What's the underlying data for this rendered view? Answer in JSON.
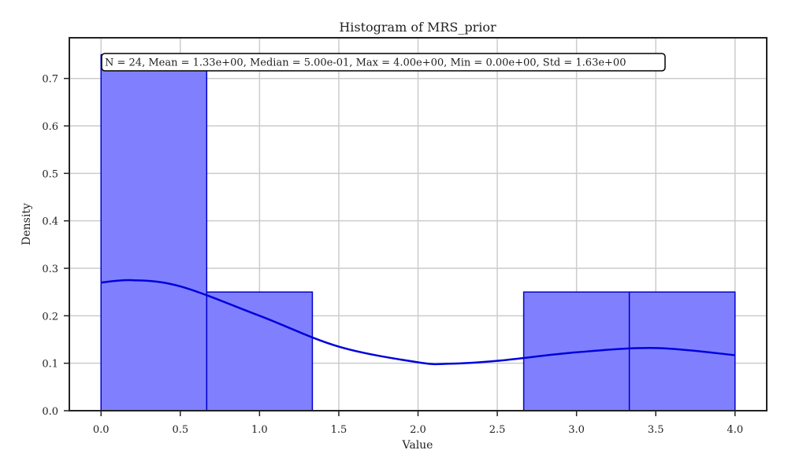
{
  "chart_data": {
    "type": "bar",
    "title": "Histogram of MRS_prior",
    "xlabel": "Value",
    "ylabel": "Density",
    "xlim": [
      -0.2,
      4.2
    ],
    "ylim": [
      0,
      0.7857
    ],
    "xticks": [
      "0.0",
      "0.5",
      "1.0",
      "1.5",
      "2.0",
      "2.5",
      "3.0",
      "3.5",
      "4.0"
    ],
    "yticks": [
      "0.0",
      "0.1",
      "0.2",
      "0.3",
      "0.4",
      "0.5",
      "0.6",
      "0.7"
    ],
    "grid": true,
    "bins": [
      {
        "x0": 0.0,
        "x1": 0.6667,
        "density": 0.75
      },
      {
        "x0": 0.6667,
        "x1": 1.3333,
        "density": 0.25
      },
      {
        "x0": 1.3333,
        "x1": 2.0,
        "density": 0.0
      },
      {
        "x0": 2.0,
        "x1": 2.6667,
        "density": 0.0
      },
      {
        "x0": 2.6667,
        "x1": 3.3333,
        "density": 0.25
      },
      {
        "x0": 3.3333,
        "x1": 4.0,
        "density": 0.25
      }
    ],
    "kde": {
      "x": [
        0.0,
        0.2,
        0.5,
        1.0,
        1.5,
        2.0,
        2.2,
        2.5,
        3.0,
        3.5,
        4.0
      ],
      "y": [
        0.27,
        0.275,
        0.262,
        0.2,
        0.135,
        0.102,
        0.099,
        0.105,
        0.123,
        0.132,
        0.117
      ]
    },
    "stats_text": "N = 24, Mean = 1.33e+00, Median = 5.00e-01, Max = 4.00e+00, Min = 0.00e+00, Std = 1.63e+00",
    "colors": {
      "bar_fill": "#8080ff",
      "bar_edge": "#0000cc",
      "kde_line": "#0000dd",
      "grid": "#cccccc",
      "axes": "#222222"
    }
  }
}
